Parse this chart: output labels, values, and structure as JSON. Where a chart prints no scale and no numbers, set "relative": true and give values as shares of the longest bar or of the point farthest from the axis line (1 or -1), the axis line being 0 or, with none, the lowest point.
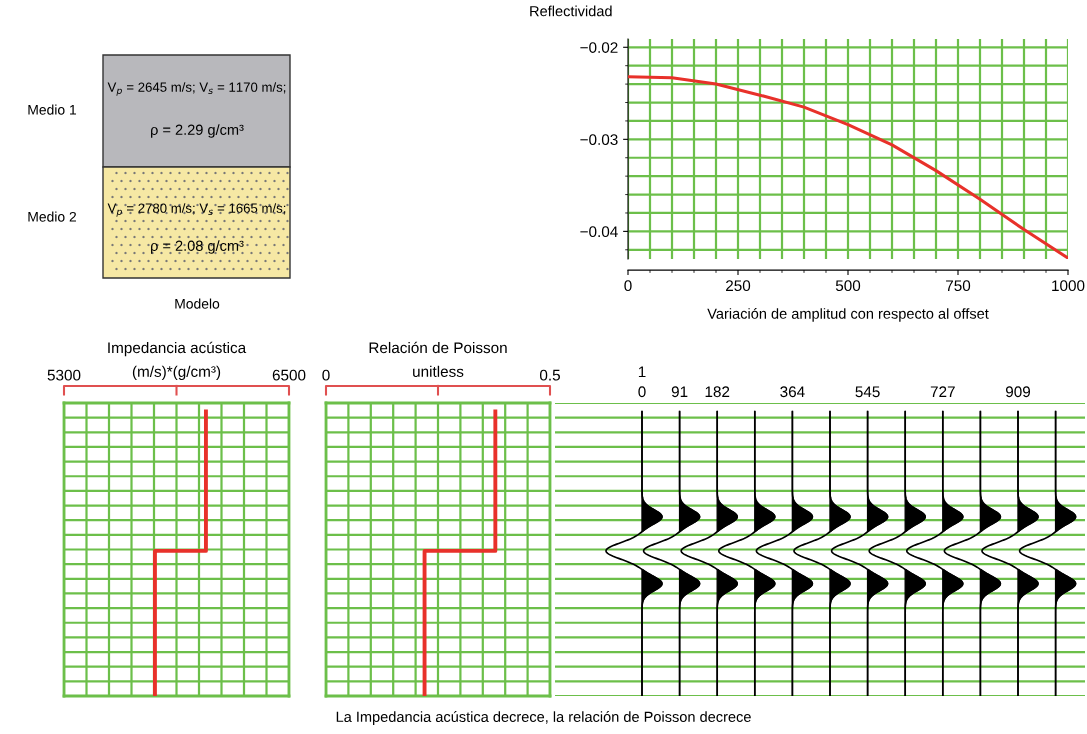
{
  "chart_data": [
    {
      "type": "other",
      "colors": [
        "#b8b8bc",
        "#f6e8a4"
      ],
      "annotations": [
        "Medio 1",
        "Medio 2",
        "V$_{p}$ = 2645 m/s; V$_{s}$ = 1170 m/s;",
        "ρ = 2.29 g/cm³",
        "V$_{p}$ = 2780 m/s; V$_{s}$ = 1665 m/s;",
        "ρ = 2.08 g/cm³",
        "Modelo"
      ]
    },
    {
      "type": "line",
      "ylabel": "Reflectividad",
      "xlabel": "Variación de amplitud con respecto al offset",
      "x": [
        0,
        100,
        200,
        300,
        400,
        500,
        600,
        700,
        800,
        900,
        1000
      ],
      "series": [
        {
          "color": "#e8312a",
          "values": [
            -0.0232,
            -0.0233,
            -0.024,
            -0.0252,
            -0.0265,
            -0.0284,
            -0.0306,
            -0.0334,
            -0.0365,
            -0.0398,
            -0.0429
          ]
        }
      ],
      "xlim": [
        0,
        1000
      ],
      "xticks": [
        0,
        250,
        500,
        750,
        1000
      ],
      "ylim": [
        -0.043,
        -0.0191
      ],
      "yticks": [
        {
          "value": -0.02,
          "label": "−0.02"
        },
        {
          "value": -0.03,
          "label": "−0.03"
        },
        {
          "value": -0.04,
          "label": "−0.04"
        }
      ],
      "grid": true
    },
    {
      "type": "line",
      "title": "Impedancia acústica",
      "xlabel": "(m/s)*(g/cm³)",
      "relative": true,
      "tick_labels": "x",
      "series": [
        {
          "color": "#e8312a",
          "x": [
            6057,
            6057,
            5785,
            5785
          ],
          "values": [
            1,
            0.51,
            0.51,
            0
          ]
        }
      ],
      "xlim": [
        5300,
        6500
      ],
      "xticks": [
        5300,
        {
          "value": 5420,
          "label": null
        },
        {
          "value": 5540,
          "label": null
        },
        {
          "value": 5660,
          "label": null
        },
        {
          "value": 5780,
          "label": null
        },
        {
          "value": 5900,
          "label": null
        },
        {
          "value": 6020,
          "label": null
        },
        {
          "value": 6140,
          "label": null
        },
        {
          "value": 6260,
          "label": null
        },
        {
          "value": 6380,
          "label": null
        },
        6500
      ],
      "grid": true
    },
    {
      "type": "line",
      "title": "Relación de Poisson",
      "xlabel": "unitless",
      "relative": true,
      "tick_labels": "x",
      "series": [
        {
          "color": "#e8312a",
          "x": [
            0.378,
            0.378,
            0.22,
            0.22
          ],
          "values": [
            1,
            0.51,
            0.51,
            0
          ]
        }
      ],
      "xlim": [
        0,
        0.5
      ],
      "xticks": [
        0,
        {
          "value": 0.05,
          "label": null
        },
        {
          "value": 0.1,
          "label": null
        },
        {
          "value": 0.15,
          "label": null
        },
        {
          "value": 0.2,
          "label": null
        },
        {
          "value": 0.25,
          "label": null
        },
        {
          "value": 0.3,
          "label": null
        },
        {
          "value": 0.35,
          "label": null
        },
        {
          "value": 0.4,
          "label": null
        },
        {
          "value": 0.45,
          "label": null
        },
        0.5
      ],
      "grid": true
    },
    {
      "type": "other",
      "annotations": [
        "1",
        "0",
        "91",
        "182",
        "364",
        "545",
        "727",
        "909",
        "La Impedancia acústica decrece, la relación de Poisson decrece"
      ]
    }
  ]
}
